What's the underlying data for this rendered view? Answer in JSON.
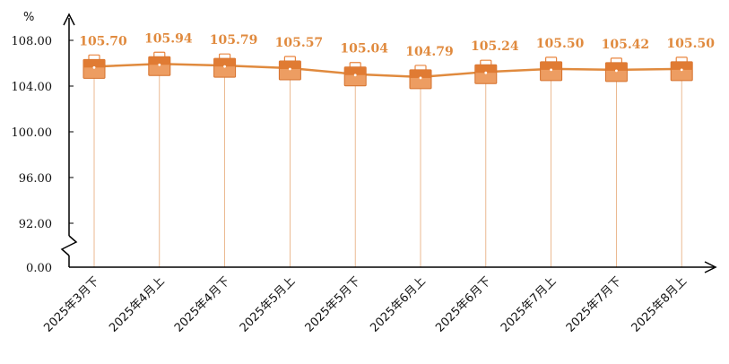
{
  "chart_data": {
    "type": "line",
    "ylabel": "%",
    "categories": [
      "2025年3月下",
      "2025年4月上",
      "2025年4月下",
      "2025年5月上",
      "2025年5月下",
      "2025年6月上",
      "2025年6月下",
      "2025年7月上",
      "2025年7月下",
      "2025年8月上"
    ],
    "series": [
      {
        "values": [
          105.7,
          105.94,
          105.79,
          105.57,
          105.04,
          104.79,
          105.24,
          105.5,
          105.42,
          105.5
        ]
      }
    ],
    "data_labels": [
      "105.70",
      "105.94",
      "105.79",
      "105.57",
      "105.04",
      "104.79",
      "105.24",
      "105.50",
      "105.42",
      "105.50"
    ],
    "yticks": [
      {
        "value": 108,
        "label": "108.00"
      },
      {
        "value": 104,
        "label": "104.00"
      },
      {
        "value": 100,
        "label": "100.00"
      },
      {
        "value": 96,
        "label": "96.00"
      },
      {
        "value": 92,
        "label": "92.00"
      },
      {
        "value": 0,
        "label": "0.00"
      }
    ],
    "ylim": [
      90,
      108
    ],
    "axis_break": true,
    "grid": false,
    "colors": {
      "line": "#E08A3E",
      "label": "#E08A3E",
      "marker": "#E9853F",
      "drop_line": "#E6A877"
    },
    "marker_icon": "briefcase-icon"
  }
}
